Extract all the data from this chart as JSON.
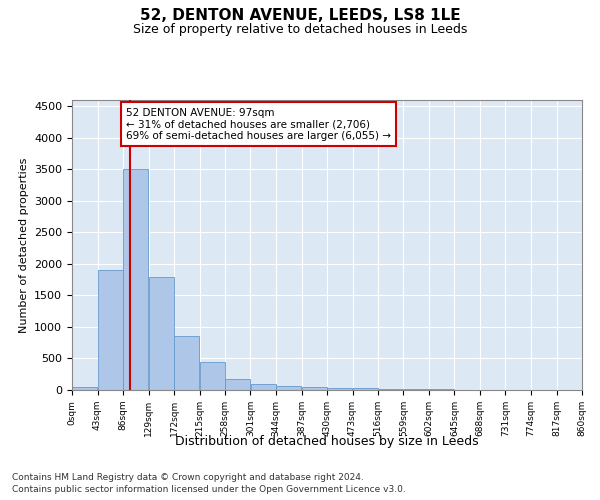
{
  "title1": "52, DENTON AVENUE, LEEDS, LS8 1LE",
  "title2": "Size of property relative to detached houses in Leeds",
  "xlabel": "Distribution of detached houses by size in Leeds",
  "ylabel": "Number of detached properties",
  "bar_color": "#aec6e8",
  "bar_edge_color": "#6699cc",
  "background_color": "#dce9f5",
  "grid_color": "#ffffff",
  "annotation_box_color": "#cc0000",
  "annotation_line_color": "#cc0000",
  "property_size": 97,
  "annotation_text": "52 DENTON AVENUE: 97sqm\n← 31% of detached houses are smaller (2,706)\n69% of semi-detached houses are larger (6,055) →",
  "bins": [
    0,
    43,
    86,
    129,
    172,
    215,
    258,
    301,
    344,
    387,
    430,
    473,
    516,
    559,
    602,
    645,
    688,
    731,
    774,
    817,
    860
  ],
  "bin_labels": [
    "0sqm",
    "43sqm",
    "86sqm",
    "129sqm",
    "172sqm",
    "215sqm",
    "258sqm",
    "301sqm",
    "344sqm",
    "387sqm",
    "430sqm",
    "473sqm",
    "516sqm",
    "559sqm",
    "602sqm",
    "645sqm",
    "688sqm",
    "731sqm",
    "774sqm",
    "817sqm",
    "860sqm"
  ],
  "bar_heights": [
    50,
    1900,
    3500,
    1800,
    850,
    450,
    175,
    100,
    70,
    50,
    35,
    25,
    15,
    10,
    8,
    6,
    4,
    4,
    3,
    2
  ],
  "ylim": [
    0,
    4600
  ],
  "yticks": [
    0,
    500,
    1000,
    1500,
    2000,
    2500,
    3000,
    3500,
    4000,
    4500
  ],
  "footer_line1": "Contains HM Land Registry data © Crown copyright and database right 2024.",
  "footer_line2": "Contains public sector information licensed under the Open Government Licence v3.0."
}
